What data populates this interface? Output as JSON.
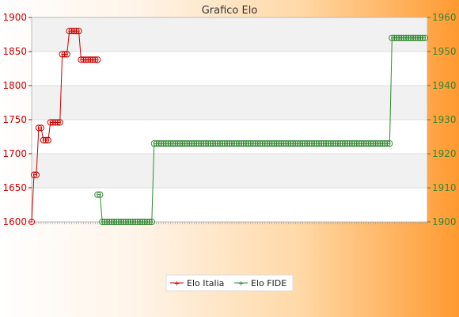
{
  "chart_data": {
    "type": "line",
    "title": "Grafico Elo",
    "xlabel": "",
    "ylabel": "",
    "grid": true,
    "legend": "bottom-center",
    "y_left": {
      "lim": [
        1600,
        1900
      ],
      "ticks": [
        1600,
        1650,
        1700,
        1750,
        1800,
        1850,
        1900
      ],
      "color": "#cc0000"
    },
    "y_right": {
      "lim": [
        1900,
        1960
      ],
      "ticks": [
        1900,
        1910,
        1920,
        1930,
        1940,
        1950,
        1960
      ],
      "color": "#338833"
    },
    "series": [
      {
        "name": "Elo Italia",
        "axis": "left",
        "color": "#cc0000",
        "x": [
          0,
          1,
          2,
          3,
          4,
          5,
          6,
          7,
          8,
          9,
          10,
          11,
          12,
          13,
          14,
          15,
          16,
          17,
          18,
          19,
          20,
          21,
          22,
          23,
          24,
          25,
          26,
          27,
          28
        ],
        "values": [
          1600,
          1669,
          1669,
          1738,
          1738,
          1720,
          1720,
          1720,
          1746,
          1746,
          1746,
          1746,
          1746,
          1846,
          1846,
          1846,
          1880,
          1880,
          1880,
          1880,
          1880,
          1838,
          1838,
          1838,
          1838,
          1838,
          1838,
          1838,
          1838
        ]
      },
      {
        "name": "Elo FIDE",
        "axis": "right",
        "color": "#338833",
        "x_start": 28,
        "values": [
          1908,
          1908,
          1900,
          1900,
          1900,
          1900,
          1900,
          1900,
          1900,
          1900,
          1900,
          1900,
          1900,
          1900,
          1900,
          1900,
          1900,
          1900,
          1900,
          1900,
          1900,
          1900,
          1900,
          1900,
          1923,
          1923,
          1923,
          1923,
          1923,
          1923,
          1923,
          1923,
          1923,
          1923,
          1923,
          1923,
          1923,
          1923,
          1923,
          1923,
          1923,
          1923,
          1923,
          1923,
          1923,
          1923,
          1923,
          1923,
          1923,
          1923,
          1923,
          1923,
          1923,
          1923,
          1923,
          1923,
          1923,
          1923,
          1923,
          1923,
          1923,
          1923,
          1923,
          1923,
          1923,
          1923,
          1923,
          1923,
          1923,
          1923,
          1923,
          1923,
          1923,
          1923,
          1923,
          1923,
          1923,
          1923,
          1923,
          1923,
          1923,
          1923,
          1923,
          1923,
          1923,
          1923,
          1923,
          1923,
          1923,
          1923,
          1923,
          1923,
          1923,
          1923,
          1923,
          1923,
          1923,
          1923,
          1923,
          1923,
          1923,
          1923,
          1923,
          1923,
          1923,
          1923,
          1923,
          1923,
          1923,
          1923,
          1923,
          1923,
          1923,
          1923,
          1923,
          1923,
          1923,
          1923,
          1923,
          1923,
          1923,
          1923,
          1923,
          1923,
          1923,
          1954,
          1954,
          1954,
          1954,
          1954,
          1954,
          1954,
          1954,
          1954,
          1954,
          1954,
          1954,
          1954,
          1954,
          1954
        ]
      }
    ]
  }
}
